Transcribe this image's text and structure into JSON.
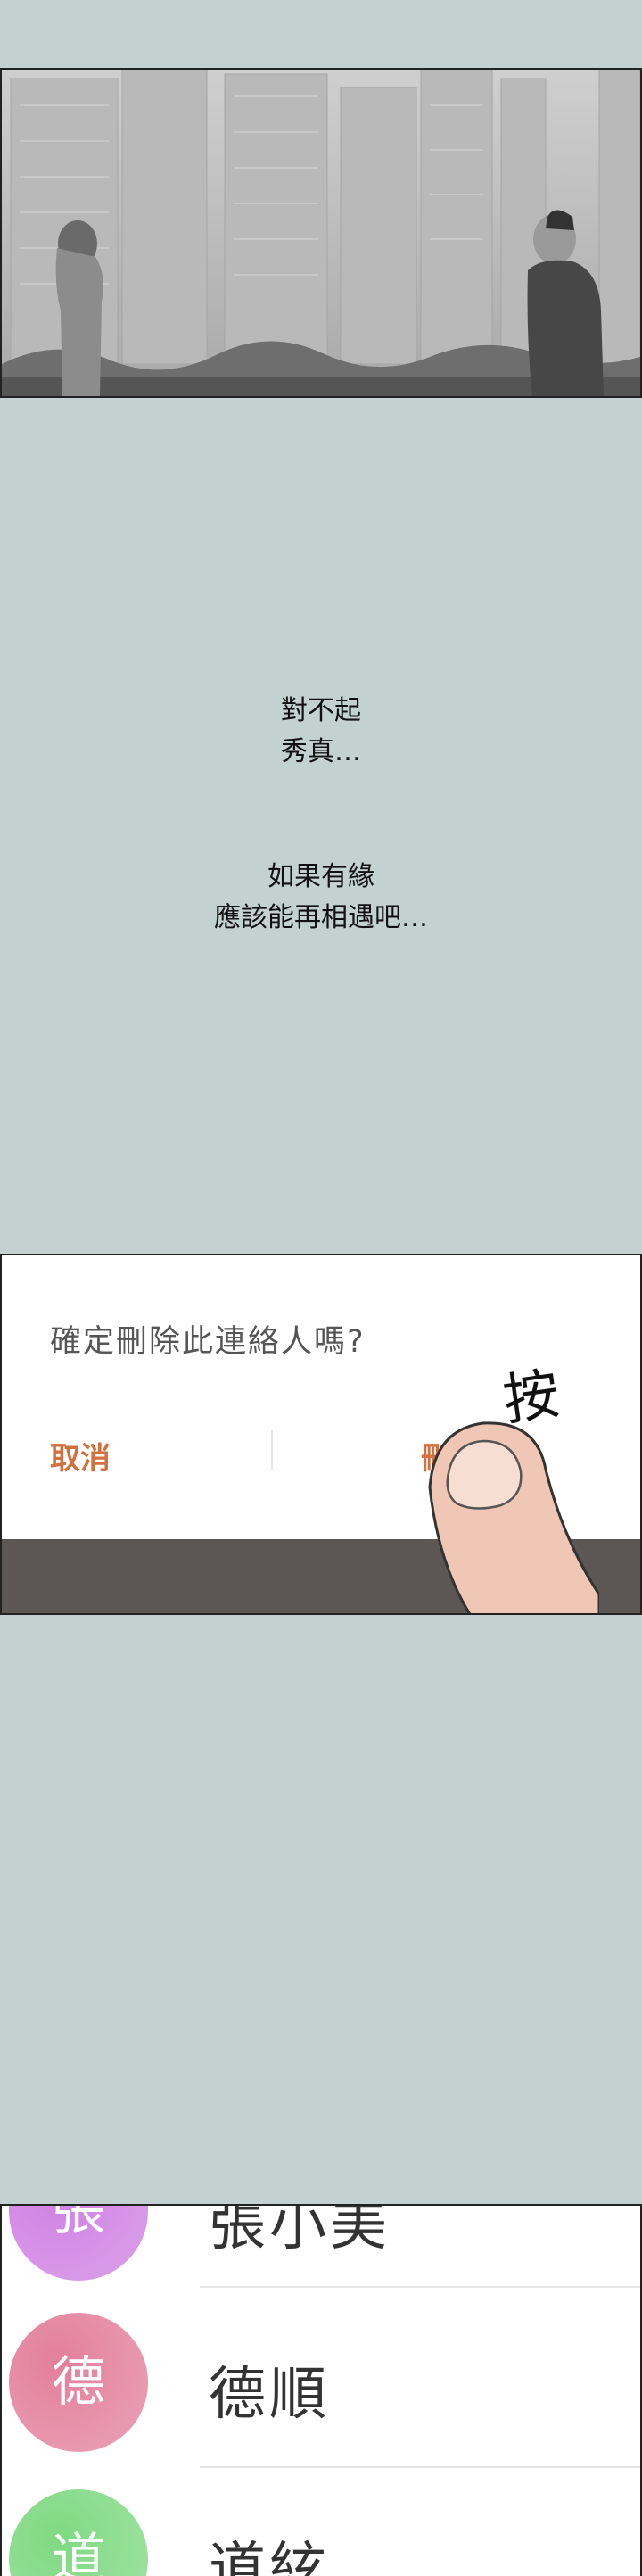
{
  "narration": {
    "line1": "對不起",
    "line2": "秀真…",
    "line3": "如果有緣",
    "line4": "應該能再相遇吧…"
  },
  "dialog": {
    "title": "確定刪除此連絡人嗎?",
    "cancel_label": "取消",
    "delete_label": "刪除"
  },
  "sound_effect": "按",
  "contacts": [
    {
      "avatar_char": "張",
      "name": "張小美",
      "color": "#cf7fe3"
    },
    {
      "avatar_char": "德",
      "name": "德順",
      "color": "#e37f9b"
    },
    {
      "avatar_char": "道",
      "name": "道絃",
      "color": "#7fd982"
    }
  ],
  "colors": {
    "background": "#c3d1d1",
    "accent": "#d2703f"
  }
}
